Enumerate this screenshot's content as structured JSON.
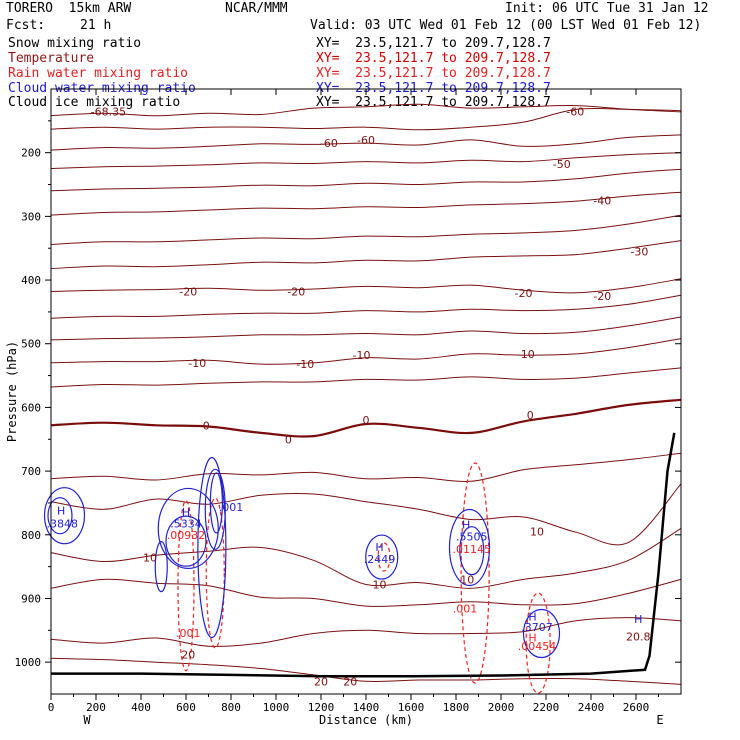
{
  "header": {
    "model": "TORERO  15km ARW",
    "center": "NCAR/MMM",
    "init": "Init: 06 UTC Tue 31 Jan 12",
    "fcst_label": "Fcst:",
    "fcst_value": "21 h",
    "valid": "Valid: 03 UTC Wed 01 Feb 12 (00 LST Wed 01 Feb 12)"
  },
  "fields": [
    {
      "name": "Snow mixing ratio",
      "xy": "XY=  23.5,121.7 to 209.7,128.7",
      "color": "#000000",
      "xy_color": "#000000"
    },
    {
      "name": "Temperature",
      "xy": "XY=  23.5,121.7 to 209.7,128.7",
      "color": "#8b1a1a",
      "xy_color": "#cc0000"
    },
    {
      "name": "Rain water mixing ratio",
      "xy": "XY=  23.5,121.7 to 209.7,128.7",
      "color": "#dd2222",
      "xy_color": "#dd2222"
    },
    {
      "name": "Cloud water mixing ratio",
      "xy": "XY=  23.5,121.7 to 209.7,128.7",
      "color": "#1a1acc",
      "xy_color": "#1a1acc"
    },
    {
      "name": "Cloud ice mixing ratio",
      "xy": "XY=  23.5,121.7 to 209.7,128.7",
      "color": "#000000",
      "xy_color": "#000000"
    }
  ],
  "colors": {
    "temperature": "#7a1010",
    "zero_isotherm": "#7a0c0c",
    "rain": "#ee2222",
    "cloud": "#2222cc",
    "terrain": "#000000"
  },
  "chart_data": {
    "type": "contour-cross-section",
    "xlabel": "Distance (km)",
    "ylabel": "Pressure (hPa)",
    "xlim": [
      0,
      2800
    ],
    "ylim": [
      1050,
      100
    ],
    "x_ticks": [
      0,
      200,
      400,
      600,
      800,
      1000,
      1200,
      1400,
      1600,
      1800,
      2000,
      2200,
      2400,
      2600
    ],
    "y_ticks": [
      200,
      300,
      400,
      500,
      600,
      700,
      800,
      900,
      1000
    ],
    "left_end": "W",
    "right_end": "E",
    "temperature_label_values": [
      "-68.35",
      "-60",
      "-60",
      "-60",
      "-50",
      "-40",
      "-30",
      "-20",
      "-20",
      "-20",
      "-20",
      "-10",
      "-10",
      "-10",
      "-10",
      "0",
      "0",
      "0",
      "0",
      "10",
      "10",
      "10",
      "10",
      "20",
      "20",
      "20",
      "20.8"
    ],
    "temperature_labels": [
      {
        "text": "-68.35",
        "x": 255,
        "p": 135
      },
      {
        "text": "-60",
        "x": 1235,
        "p": 185
      },
      {
        "text": "-60",
        "x": 1400,
        "p": 180
      },
      {
        "text": "-60",
        "x": 2330,
        "p": 135
      },
      {
        "text": "-50",
        "x": 2270,
        "p": 218
      },
      {
        "text": "-40",
        "x": 2450,
        "p": 275
      },
      {
        "text": "-30",
        "x": 2615,
        "p": 355
      },
      {
        "text": "-20",
        "x": 610,
        "p": 418
      },
      {
        "text": "-20",
        "x": 1090,
        "p": 418
      },
      {
        "text": "-20",
        "x": 2100,
        "p": 420
      },
      {
        "text": "-20",
        "x": 2450,
        "p": 425
      },
      {
        "text": "-10",
        "x": 650,
        "p": 530
      },
      {
        "text": "-10",
        "x": 1130,
        "p": 532
      },
      {
        "text": "-10",
        "x": 1380,
        "p": 518
      },
      {
        "text": "-10",
        "x": 2110,
        "p": 516
      },
      {
        "text": "0",
        "x": 690,
        "p": 628
      },
      {
        "text": "0",
        "x": 1055,
        "p": 650
      },
      {
        "text": "0",
        "x": 1400,
        "p": 620
      },
      {
        "text": "0",
        "x": 2130,
        "p": 612
      },
      {
        "text": "10",
        "x": 440,
        "p": 836
      },
      {
        "text": "10",
        "x": 1460,
        "p": 878
      },
      {
        "text": "10",
        "x": 1850,
        "p": 870
      },
      {
        "text": "10",
        "x": 2160,
        "p": 795
      },
      {
        "text": "20",
        "x": 610,
        "p": 988
      },
      {
        "text": "20",
        "x": 1200,
        "p": 1030
      },
      {
        "text": "20",
        "x": 1330,
        "p": 1030
      },
      {
        "text": "20.8",
        "x": 2610,
        "p": 960
      }
    ],
    "temperature_isotherms": [
      {
        "p": [
          142,
          138,
          142,
          138,
          140,
          130,
          128,
          124,
          130,
          128,
          126,
          132,
          136
        ]
      },
      {
        "p": [
          163,
          160,
          163,
          160,
          160,
          162,
          160,
          164,
          160,
          152,
          132,
          132,
          134
        ]
      },
      {
        "p": [
          196,
          192,
          193,
          190,
          186,
          187,
          185,
          188,
          180,
          190,
          186,
          176,
          172
        ]
      },
      {
        "p": [
          225,
          222,
          221,
          219,
          216,
          217,
          214,
          216,
          212,
          214,
          208,
          203,
          200
        ]
      },
      {
        "p": [
          260,
          257,
          256,
          254,
          251,
          252,
          248,
          250,
          246,
          246,
          241,
          232,
          226
        ]
      },
      {
        "p": [
          298,
          294,
          293,
          290,
          287,
          288,
          285,
          286,
          282,
          280,
          276,
          268,
          262
        ]
      },
      {
        "p": [
          344,
          340,
          340,
          337,
          334,
          335,
          331,
          332,
          328,
          326,
          322,
          312,
          298
        ]
      },
      {
        "p": [
          382,
          378,
          379,
          376,
          372,
          373,
          369,
          370,
          364,
          362,
          360,
          350,
          338
        ]
      },
      {
        "p": [
          418,
          416,
          415,
          413,
          416,
          414,
          410,
          412,
          408,
          416,
          420,
          412,
          398
        ]
      },
      {
        "p": [
          460,
          457,
          457,
          454,
          452,
          452,
          448,
          450,
          446,
          448,
          446,
          438,
          424
        ]
      },
      {
        "p": [
          494,
          492,
          491,
          489,
          486,
          486,
          484,
          486,
          480,
          484,
          482,
          472,
          458
        ]
      },
      {
        "p": [
          530,
          528,
          528,
          526,
          532,
          530,
          522,
          524,
          516,
          518,
          516,
          506,
          492
        ]
      },
      {
        "p": [
          568,
          564,
          565,
          562,
          560,
          560,
          556,
          557,
          552,
          556,
          554,
          546,
          538
        ]
      },
      {
        "p": [
          628,
          624,
          628,
          630,
          640,
          645,
          626,
          632,
          640,
          622,
          610,
          596,
          588
        ]
      },
      {
        "p": [
          712,
          708,
          714,
          704,
          706,
          702,
          712,
          710,
          716,
          698,
          690,
          682,
          672
        ]
      },
      {
        "p": [
          748,
          760,
          744,
          752,
          738,
          736,
          748,
          760,
          776,
          772,
          796,
          812,
          720
        ]
      },
      {
        "p": [
          828,
          842,
          832,
          826,
          820,
          840,
          878,
          875,
          884,
          870,
          860,
          840,
          790
        ]
      },
      {
        "p": [
          884,
          870,
          876,
          880,
          898,
          900,
          912,
          910,
          905,
          910,
          908,
          892,
          870
        ]
      },
      {
        "p": [
          964,
          970,
          962,
          975,
          970,
          955,
          950,
          955,
          955,
          952,
          935,
          930,
          935
        ]
      },
      {
        "p": [
          994,
          996,
          1000,
          1004,
          1010,
          1020,
          1030,
          1028,
          1028,
          1026,
          1026,
          1030,
          1035
        ]
      }
    ],
    "high_labels": [
      {
        "text": "H",
        "x": 45,
        "p": 762
      },
      {
        "text": "H",
        "x": 600,
        "p": 764
      },
      {
        "text": "H",
        "x": 1460,
        "p": 819
      },
      {
        "text": "H",
        "x": 1845,
        "p": 784
      },
      {
        "text": "H",
        "x": 2140,
        "p": 928
      },
      {
        "text": "H",
        "x": 2610,
        "p": 932
      }
    ],
    "cloud_labels": [
      {
        "text": ".3848",
        "x": 50,
        "p": 782
      },
      {
        "text": ".5334",
        "x": 600,
        "p": 782
      },
      {
        "text": ".2449",
        "x": 1460,
        "p": 838
      },
      {
        "text": ".5505",
        "x": 1870,
        "p": 803
      },
      {
        "text": ".3707",
        "x": 2160,
        "p": 945
      },
      {
        "text": ".001",
        "x": 800,
        "p": 756
      }
    ],
    "rain_labels": [
      {
        "text": "H",
        "x": 2140,
        "p": 961
      },
      {
        "text": ".00932",
        "x": 600,
        "p": 800
      },
      {
        "text": ".01145",
        "x": 1870,
        "p": 822
      },
      {
        "text": ".00454",
        "x": 2160,
        "p": 975
      },
      {
        "text": ".001",
        "x": 610,
        "p": 954
      },
      {
        "text": ".001",
        "x": 1840,
        "p": 916
      }
    ]
  }
}
